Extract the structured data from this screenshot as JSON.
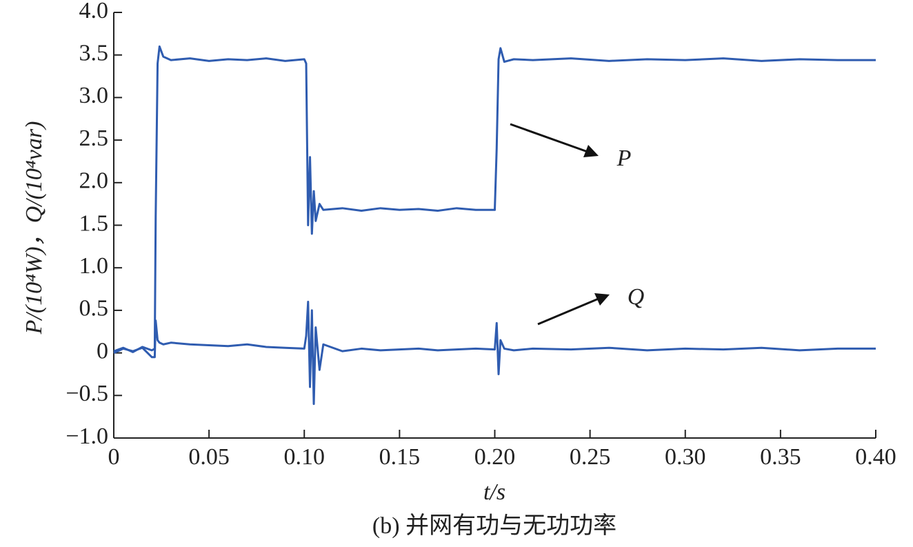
{
  "chart_data": {
    "type": "line",
    "x": [
      0,
      0.005,
      0.01,
      0.015,
      0.02,
      0.0215,
      0.022,
      0.023,
      0.024,
      0.026,
      0.03,
      0.04,
      0.05,
      0.06,
      0.07,
      0.08,
      0.09,
      0.1,
      0.101,
      0.102,
      0.103,
      0.104,
      0.105,
      0.106,
      0.108,
      0.11,
      0.12,
      0.13,
      0.14,
      0.15,
      0.16,
      0.17,
      0.18,
      0.19,
      0.2,
      0.201,
      0.202,
      0.203,
      0.205,
      0.21,
      0.22,
      0.24,
      0.26,
      0.28,
      0.3,
      0.32,
      0.34,
      0.36,
      0.38,
      0.4
    ],
    "series": [
      {
        "name": "P",
        "color": "#2f5cb0",
        "values": [
          0.02,
          0.06,
          0.01,
          0.07,
          0.03,
          0.05,
          1.6,
          3.4,
          3.6,
          3.48,
          3.44,
          3.46,
          3.43,
          3.45,
          3.44,
          3.46,
          3.43,
          3.45,
          3.4,
          1.5,
          2.3,
          1.4,
          1.9,
          1.55,
          1.75,
          1.68,
          1.7,
          1.67,
          1.7,
          1.68,
          1.69,
          1.67,
          1.7,
          1.68,
          1.68,
          2.4,
          3.45,
          3.58,
          3.42,
          3.45,
          3.44,
          3.46,
          3.43,
          3.45,
          3.44,
          3.46,
          3.43,
          3.45,
          3.44,
          3.44
        ]
      },
      {
        "name": "Q",
        "color": "#2f5cb0",
        "values": [
          0.0,
          0.05,
          0.02,
          0.06,
          -0.05,
          -0.05,
          0.38,
          0.15,
          0.12,
          0.1,
          0.12,
          0.1,
          0.09,
          0.08,
          0.1,
          0.07,
          0.06,
          0.05,
          0.2,
          0.6,
          -0.4,
          0.5,
          -0.6,
          0.3,
          -0.2,
          0.1,
          0.02,
          0.05,
          0.03,
          0.04,
          0.05,
          0.03,
          0.04,
          0.05,
          0.04,
          0.35,
          -0.25,
          0.15,
          0.05,
          0.03,
          0.05,
          0.04,
          0.06,
          0.03,
          0.05,
          0.04,
          0.06,
          0.03,
          0.05,
          0.05
        ]
      }
    ],
    "xlim": [
      0,
      0.4
    ],
    "ylim": [
      -1,
      4
    ],
    "xticks": [
      0,
      0.05,
      {
        "value": 0.1,
        "label": "0.10"
      },
      0.15,
      {
        "value": 0.2,
        "label": "0.20"
      },
      0.25,
      {
        "value": 0.3,
        "label": "0.30"
      },
      0.35,
      {
        "value": 0.4,
        "label": "0.40"
      }
    ],
    "yticks": [
      {
        "value": 4,
        "label": "4.0"
      },
      3.5,
      {
        "value": 3,
        "label": "3.0"
      },
      2.5,
      {
        "value": 2,
        "label": "2.0"
      },
      1.5,
      {
        "value": 1,
        "label": "1.0"
      },
      0.5,
      0,
      {
        "value": -0.5,
        "label": "−0.5"
      },
      {
        "value": -1,
        "label": "−1.0"
      }
    ],
    "x_label": "t/s",
    "y_label": "P/(10⁴W)，Q/(10⁴var)",
    "caption": "(b) 并网有功与无功功率",
    "annotations": [
      "P",
      "Q"
    ]
  }
}
